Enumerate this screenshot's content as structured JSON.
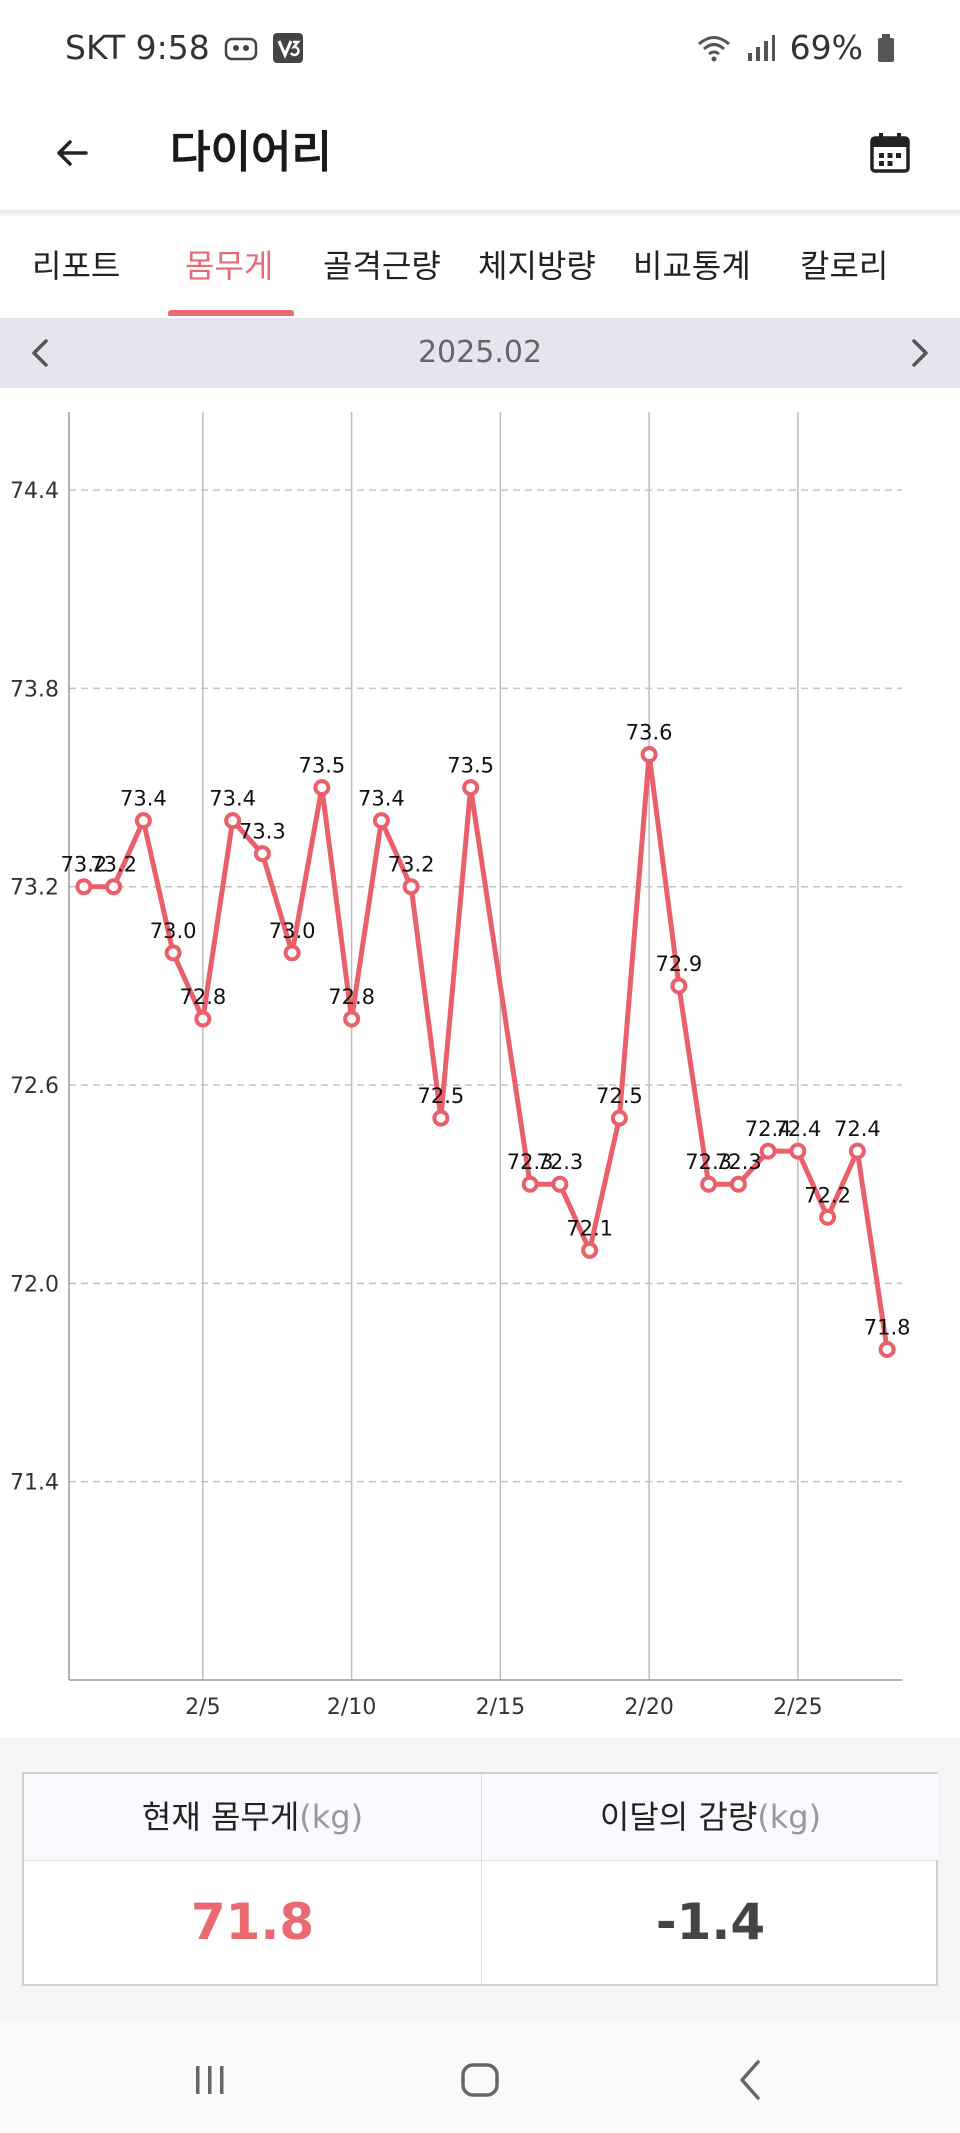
{
  "status": {
    "carrier_time": "SKT 9:58",
    "battery": "69%"
  },
  "header": {
    "title": "다이어리"
  },
  "tabs": [
    {
      "label": "리포트"
    },
    {
      "label": "몸무게"
    },
    {
      "label": "골격근량"
    },
    {
      "label": "체지방량"
    },
    {
      "label": "비교통계"
    },
    {
      "label": "칼로리"
    }
  ],
  "month": {
    "label": "2025.02"
  },
  "chart_data": {
    "type": "line",
    "x": [
      1,
      2,
      3,
      4,
      5,
      6,
      7,
      8,
      9,
      10,
      11,
      12,
      13,
      14,
      16,
      17,
      18,
      19,
      20,
      21,
      22,
      23,
      24,
      25,
      26,
      27,
      28
    ],
    "values": [
      73.2,
      73.2,
      73.4,
      73.0,
      72.8,
      73.4,
      73.3,
      73.0,
      73.5,
      72.8,
      73.4,
      73.2,
      72.5,
      73.5,
      72.3,
      72.3,
      72.1,
      72.5,
      73.6,
      72.9,
      72.3,
      72.3,
      72.4,
      72.4,
      72.2,
      72.4,
      71.8
    ],
    "point_labels": [
      "73.2",
      "73.2",
      "73.4",
      "73.0",
      "72.8",
      "73.4",
      "73.3",
      "73.0",
      "73.5",
      "72.8",
      "73.4",
      "73.2",
      "72.5",
      "73.5",
      "72.3",
      "72.3",
      "72.1",
      "72.5",
      "73.6",
      "72.9",
      "72.3",
      "72.3",
      "72.4",
      "72.4",
      "72.2",
      "72.4",
      "71.8"
    ],
    "x_ticks": [
      5,
      10,
      15,
      20,
      25
    ],
    "x_tick_labels": [
      "2/5",
      "2/10",
      "2/15",
      "2/20",
      "2/25"
    ],
    "y_ticks": [
      71.4,
      72.0,
      72.6,
      73.2,
      73.8,
      74.4
    ],
    "y_tick_labels": [
      "71.4",
      "72.0",
      "72.6",
      "73.2",
      "73.8",
      "74.4"
    ],
    "xlim": [
      0.5,
      28.5
    ],
    "ylim": [
      70.8,
      74.6
    ],
    "grid": true,
    "line_color": "#e9606b"
  },
  "summary": {
    "current_weight_label": "현재 몸무게",
    "current_weight_unit": "(kg)",
    "current_weight_value": "71.8",
    "monthly_change_label": "이달의 감량",
    "monthly_change_unit": "(kg)",
    "monthly_change_value": "-1.4"
  },
  "colors": {
    "accent": "#ea6a72",
    "month_bar": "#e6e4ef"
  }
}
